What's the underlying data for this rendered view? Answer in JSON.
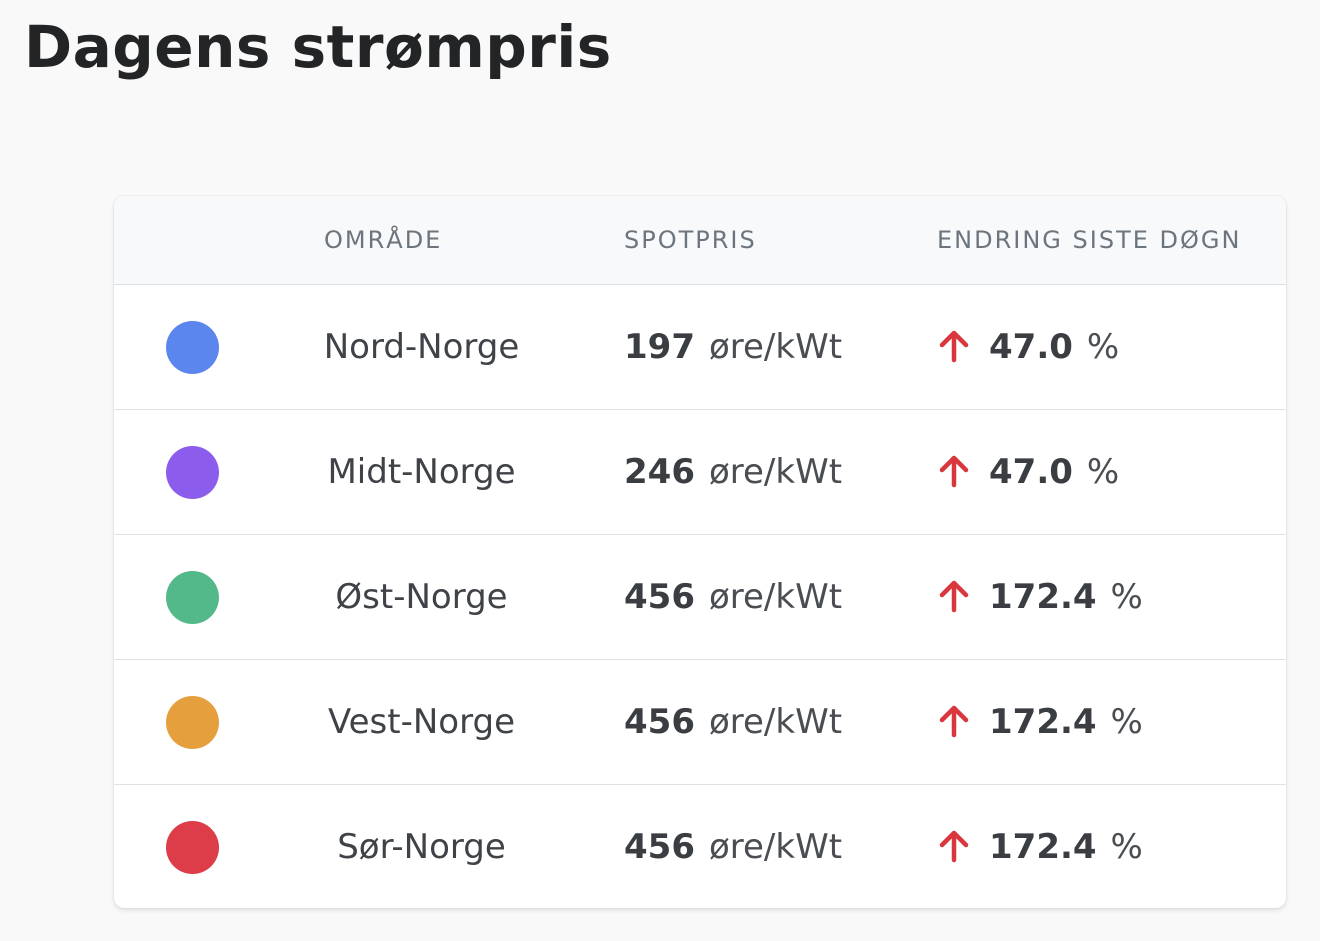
{
  "page": {
    "title": "Dagens strømpris"
  },
  "table": {
    "headers": {
      "area": "OMRÅDE",
      "spot": "SPOTPRIS",
      "change": "ENDRING SISTE DØGN"
    },
    "rows": [
      {
        "area": "Nord-Norge",
        "color": "#5b86ee",
        "price": "197",
        "unit": "øre/kWt",
        "change": "47.0",
        "change_unit": "%",
        "trend_icon": "arrow-up-icon"
      },
      {
        "area": "Midt-Norge",
        "color": "#8c5cec",
        "price": "246",
        "unit": "øre/kWt",
        "change": "47.0",
        "change_unit": "%",
        "trend_icon": "arrow-up-icon"
      },
      {
        "area": "Øst-Norge",
        "color": "#54b98a",
        "price": "456",
        "unit": "øre/kWt",
        "change": "172.4",
        "change_unit": "%",
        "trend_icon": "arrow-up-icon"
      },
      {
        "area": "Vest-Norge",
        "color": "#e59f3c",
        "price": "456",
        "unit": "øre/kWt",
        "change": "172.4",
        "change_unit": "%",
        "trend_icon": "arrow-up-icon"
      },
      {
        "area": "Sør-Norge",
        "color": "#dc3d48",
        "price": "456",
        "unit": "øre/kWt",
        "change": "172.4",
        "change_unit": "%",
        "trend_icon": "arrow-up-icon"
      }
    ]
  },
  "colors": {
    "trend_up": "#d9363e"
  }
}
